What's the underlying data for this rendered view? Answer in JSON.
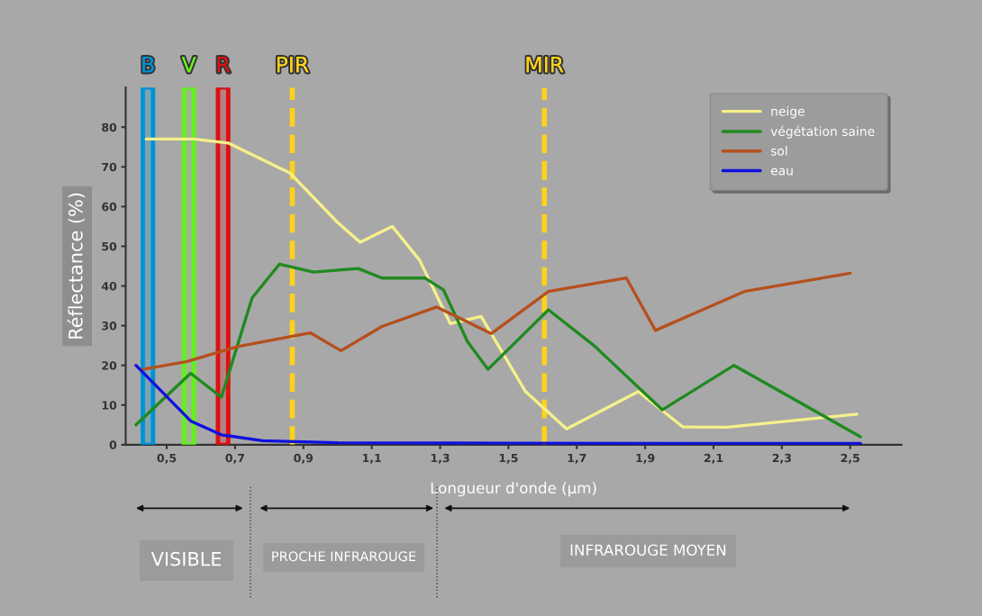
{
  "chart_data": {
    "type": "line",
    "xlabel": "Longueur d'onde (µm)",
    "ylabel": "Réflectance (%)",
    "xlim": [
      0.38,
      2.65
    ],
    "ylim": [
      0,
      90
    ],
    "xticks": [
      {
        "value": 0.5,
        "label": "0,5"
      },
      {
        "value": 0.7,
        "label": "0,7"
      },
      {
        "value": 0.9,
        "label": "0,9"
      },
      {
        "value": 1.1,
        "label": "1,1"
      },
      {
        "value": 1.3,
        "label": "1,3"
      },
      {
        "value": 1.5,
        "label": "1,5"
      },
      {
        "value": 1.7,
        "label": "1,7"
      },
      {
        "value": 1.9,
        "label": "1,9"
      },
      {
        "value": 2.1,
        "label": "2,1"
      },
      {
        "value": 2.3,
        "label": "2,3"
      },
      {
        "value": 2.5,
        "label": "2,5"
      }
    ],
    "yticks": [
      0,
      10,
      20,
      30,
      40,
      50,
      60,
      70,
      80
    ],
    "grid": false,
    "legend": "top right",
    "marker": "none",
    "line_style": "solid",
    "series": [
      {
        "name": "neige",
        "color": "#f5f08a",
        "x": [
          0.44,
          0.58,
          0.68,
          0.86,
          1.0,
          1.066,
          1.16,
          1.24,
          1.33,
          1.42,
          1.55,
          1.67,
          1.88,
          2.01,
          2.14,
          2.52
        ],
        "values": [
          77,
          77,
          76,
          68.5,
          56,
          51,
          55,
          46.5,
          30.5,
          32.3,
          13.4,
          4,
          13.4,
          4.5,
          4.4,
          7.7
        ]
      },
      {
        "name": "végétation saine",
        "color": "#1f8a1f",
        "x": [
          0.41,
          0.57,
          0.66,
          0.75,
          0.83,
          0.93,
          1.06,
          1.13,
          1.255,
          1.31,
          1.38,
          1.44,
          1.617,
          1.75,
          1.95,
          2.16,
          2.325,
          2.53
        ],
        "values": [
          5,
          18,
          12,
          37,
          45.5,
          43.5,
          44.4,
          42,
          42,
          39,
          26,
          19,
          34,
          25,
          8.8,
          20,
          12,
          2
        ]
      },
      {
        "name": "sol",
        "color": "#b5501e",
        "x": [
          0.43,
          0.56,
          0.71,
          0.92,
          1.01,
          1.13,
          1.29,
          1.45,
          1.617,
          1.845,
          1.93,
          2.19,
          2.5
        ],
        "values": [
          19,
          21,
          24.8,
          28.2,
          23.7,
          29.8,
          34.7,
          28,
          38.6,
          42,
          28.8,
          38.6,
          43.2
        ]
      },
      {
        "name": "eau",
        "color": "#1010e0",
        "x": [
          0.41,
          0.48,
          0.57,
          0.66,
          0.78,
          1.0,
          1.5,
          2.0,
          2.53
        ],
        "values": [
          20,
          13.9,
          6,
          2.5,
          1,
          0.5,
          0.4,
          0.3,
          0.3
        ]
      }
    ],
    "bands": [
      {
        "axis": "x",
        "from": 0.43,
        "to": 0.46,
        "label": "B",
        "color": "#0092d6"
      },
      {
        "axis": "x",
        "from": 0.55,
        "to": 0.58,
        "label": "V",
        "color": "#66ee22"
      },
      {
        "axis": "x",
        "from": 0.65,
        "to": 0.68,
        "label": "R",
        "color": "#dd1111"
      }
    ],
    "ref_lines": [
      {
        "axis": "x",
        "value": 0.8675,
        "label": "PIR",
        "color": "#ffd21a",
        "line_style": "dashed"
      },
      {
        "axis": "x",
        "value": 1.605,
        "label": "MIR",
        "color": "#ffd21a",
        "line_style": "dashed"
      }
    ],
    "annotations": [
      "VISIBLE",
      "PROCHE INFRAROUGE",
      "INFRAROUGE MOYEN"
    ]
  }
}
